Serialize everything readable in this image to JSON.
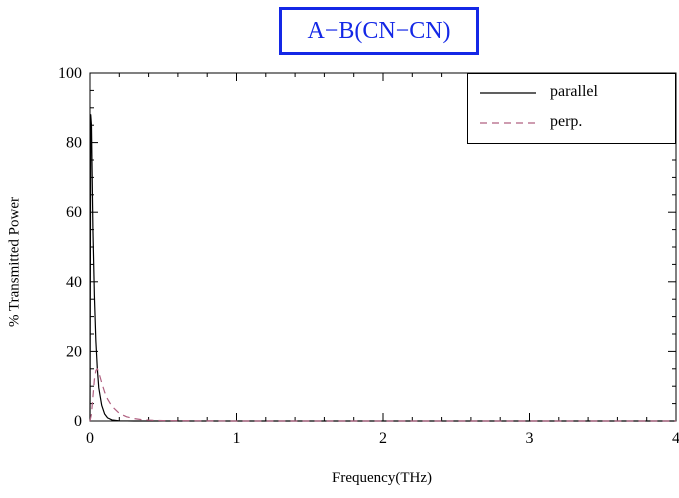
{
  "chart_data": {
    "type": "line",
    "title": "A−B(CN−CN)",
    "xlabel": "Frequency(THz)",
    "ylabel": "% Transmitted Power",
    "xlim": [
      0,
      4
    ],
    "ylim": [
      0,
      100
    ],
    "xticks": [
      0,
      1,
      2,
      3,
      4
    ],
    "yticks": [
      0,
      20,
      40,
      60,
      80,
      100
    ],
    "grid": false,
    "legend_position": "top-right",
    "series": [
      {
        "name": "parallel",
        "color": "#000000",
        "dash": "solid",
        "x": [
          0.0,
          0.005,
          0.01,
          0.015,
          0.02,
          0.03,
          0.04,
          0.05,
          0.06,
          0.08,
          0.1,
          0.12,
          0.15,
          0.2,
          0.3,
          0.5,
          1.0,
          2.0,
          3.0,
          4.0
        ],
        "y": [
          0,
          88,
          85,
          70,
          55,
          36,
          23,
          15,
          9.5,
          4.5,
          2.0,
          0.9,
          0.3,
          0.05,
          0,
          0,
          0,
          0,
          0,
          0
        ]
      },
      {
        "name": "perp.",
        "color": "#b06080",
        "dash": "dashed",
        "x": [
          0.0,
          0.01,
          0.02,
          0.03,
          0.04,
          0.05,
          0.06,
          0.08,
          0.1,
          0.12,
          0.15,
          0.2,
          0.25,
          0.3,
          0.35,
          0.4,
          0.5,
          1.0,
          2.0,
          3.0,
          4.0
        ],
        "y": [
          0,
          2,
          7,
          12,
          14.5,
          15,
          14,
          11,
          8.3,
          6.3,
          4.2,
          2.2,
          1.2,
          0.7,
          0.4,
          0.25,
          0.1,
          0,
          0,
          0,
          0
        ]
      }
    ]
  }
}
